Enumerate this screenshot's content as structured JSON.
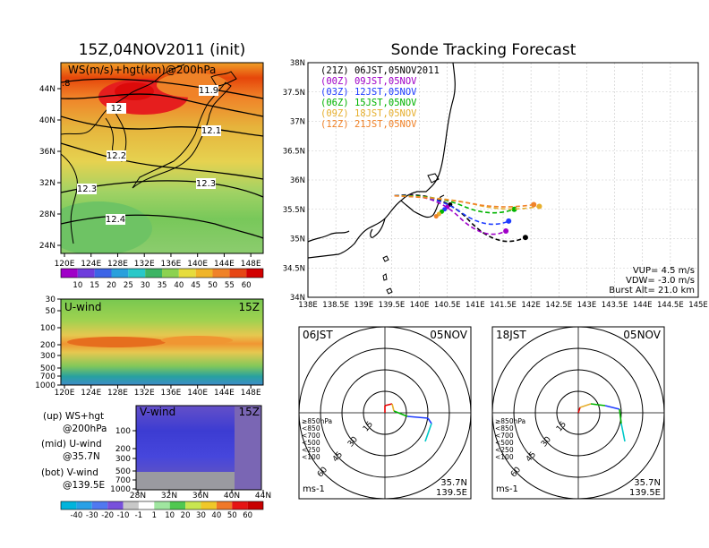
{
  "titles": {
    "left": "15Z,04NOV2011 (init)",
    "right": "Sonde Tracking Forecast"
  },
  "map": {
    "label": "WS(m/s)+hgt(km)@200hPa",
    "corner": ".8",
    "xticks": [
      "120E",
      "124E",
      "128E",
      "132E",
      "136E",
      "140E",
      "144E",
      "148E"
    ],
    "yticks": [
      "44N",
      "40N",
      "36N",
      "32N",
      "28N",
      "24N"
    ],
    "contour_labels": [
      "11.9",
      "12",
      "12.1",
      "12.2",
      "12.3",
      "12.3",
      "12.4"
    ]
  },
  "ws_colorbar": {
    "labels": [
      "10",
      "15",
      "20",
      "25",
      "30",
      "35",
      "40",
      "45",
      "50",
      "55",
      "60"
    ]
  },
  "uwind": {
    "label": "U-wind",
    "time": "15Z",
    "yticks": [
      "30",
      "50",
      "100",
      "200",
      "300",
      "500",
      "700",
      "1000"
    ],
    "xticks": [
      "120E",
      "124E",
      "128E",
      "132E",
      "136E",
      "140E",
      "144E",
      "148E"
    ]
  },
  "vwind": {
    "label": "V-wind",
    "time": "15Z",
    "yticks": [
      "100",
      "200",
      "300",
      "500",
      "700",
      "1000"
    ],
    "xticks": [
      "28N",
      "32N",
      "36N",
      "40N",
      "44N"
    ]
  },
  "notes": [
    {
      "a": "(up) WS+hgt",
      "b": "@200hPa"
    },
    {
      "a": "(mid) U-wind",
      "b": "@35.7N"
    },
    {
      "a": "(bot) V-wind",
      "b": "@139.5E"
    }
  ],
  "uv_colorbar": {
    "labels": [
      "-40",
      "-30",
      "-20",
      "-10",
      "-1",
      "1",
      "10",
      "20",
      "30",
      "40",
      "50",
      "60"
    ]
  },
  "track": {
    "yticks": [
      "38N",
      "37.5N",
      "37N",
      "36.5N",
      "36N",
      "35.5N",
      "35N",
      "34.5N",
      "34N"
    ],
    "xticks": [
      "138E",
      "138.5E",
      "139E",
      "139.5E",
      "140E",
      "140.5E",
      "141E",
      "141.5E",
      "142E",
      "142.5E",
      "143E",
      "143.5E",
      "144E",
      "144.5E",
      "145E"
    ],
    "xlim": [
      138,
      145
    ],
    "ylim": [
      34,
      38
    ],
    "legend": [
      {
        "utc": "(21Z)",
        "jst": "06JST,05NOV2011",
        "color": "#000000"
      },
      {
        "utc": "(00Z)",
        "jst": "09JST,05NOV",
        "color": "#a000c8"
      },
      {
        "utc": "(03Z)",
        "jst": "12JST,05NOV",
        "color": "#1e3cff"
      },
      {
        "utc": "(06Z)",
        "jst": "15JST,05NOV",
        "color": "#00b400"
      },
      {
        "utc": "(09Z)",
        "jst": "18JST,05NOV",
        "color": "#e6af2d"
      },
      {
        "utc": "(12Z)",
        "jst": "21JST,05NOV",
        "color": "#f08228"
      }
    ],
    "params": [
      "VUP= 4.5 m/s",
      "VDW= -3.0 m/s",
      "Burst Alt= 21.0 km"
    ]
  },
  "hodographs": [
    {
      "time": "06JST",
      "date": "05NOV",
      "lat": "35.7N",
      "lon": "139.5E",
      "unit": "ms-1"
    },
    {
      "time": "18JST",
      "date": "05NOV",
      "lat": "35.7N",
      "lon": "139.5E",
      "unit": "ms-1"
    }
  ],
  "ring_labels": [
    "15",
    "30",
    "45",
    "60"
  ],
  "level_legend": [
    {
      "text": "≥850hPa",
      "color": "#e60000"
    },
    {
      "text": "<850",
      "color": "#f08228"
    },
    {
      "text": "<700",
      "color": "#e6af2d"
    },
    {
      "text": "<500",
      "color": "#00b400"
    },
    {
      "text": "<250",
      "color": "#00c8c8"
    },
    {
      "text": "<100",
      "color": "#1e3cff"
    }
  ],
  "chart_data": [
    {
      "type": "heatmap",
      "title": "15Z,04NOV2011 (init)",
      "subtitle": "WS(m/s)+hgt(km)@200hPa",
      "x_ticks": [
        "120E",
        "124E",
        "128E",
        "132E",
        "136E",
        "140E",
        "144E",
        "148E"
      ],
      "y_ticks": [
        "24N",
        "28N",
        "32N",
        "36N",
        "40N",
        "44N"
      ],
      "colorbar": [
        10,
        15,
        20,
        25,
        30,
        35,
        40,
        45,
        50,
        55,
        60
      ],
      "height_contours_km": [
        11.9,
        12.0,
        12.1,
        12.2,
        12.3,
        12.4
      ],
      "wind_speed_max_region_ms": 60
    },
    {
      "type": "heatmap",
      "title": "U-wind",
      "subtitle": "15Z",
      "x_ticks": [
        "120E",
        "124E",
        "128E",
        "132E",
        "136E",
        "140E",
        "144E",
        "148E"
      ],
      "y_ticks_hPa": [
        30,
        50,
        100,
        200,
        300,
        500,
        700,
        1000
      ],
      "jet_core_level_hPa": 200,
      "jet_core_speed_ms": 40
    },
    {
      "type": "heatmap",
      "title": "V-wind",
      "subtitle": "15Z",
      "x_ticks": [
        "28N",
        "32N",
        "36N",
        "40N",
        "44N"
      ],
      "y_ticks_hPa": [
        100,
        200,
        300,
        500,
        700,
        1000
      ],
      "colorbar": [
        -40,
        -30,
        -20,
        -10,
        -1,
        1,
        10,
        20,
        30,
        40,
        50,
        60
      ]
    },
    {
      "type": "line",
      "title": "Sonde Tracking Forecast",
      "xlim": [
        138,
        145
      ],
      "ylim": [
        34,
        38
      ],
      "launch": {
        "lon": 139.55,
        "lat": 35.73
      },
      "series": [
        {
          "name": "(21Z) 06JST,05NOV2011",
          "color": "#000000",
          "end": [
            141.9,
            35.02
          ]
        },
        {
          "name": "(00Z) 09JST,05NOV",
          "color": "#a000c8",
          "end": [
            141.55,
            35.13
          ]
        },
        {
          "name": "(03Z) 12JST,05NOV",
          "color": "#1e3cff",
          "end": [
            141.6,
            35.3
          ]
        },
        {
          "name": "(06Z) 15JST,05NOV",
          "color": "#00b400",
          "end": [
            141.7,
            35.5
          ]
        },
        {
          "name": "(09Z) 18JST,05NOV",
          "color": "#e6af2d",
          "end": [
            142.15,
            35.55
          ]
        },
        {
          "name": "(12Z) 21JST,05NOV",
          "color": "#f08228",
          "end": [
            142.05,
            35.58
          ]
        }
      ]
    }
  ]
}
